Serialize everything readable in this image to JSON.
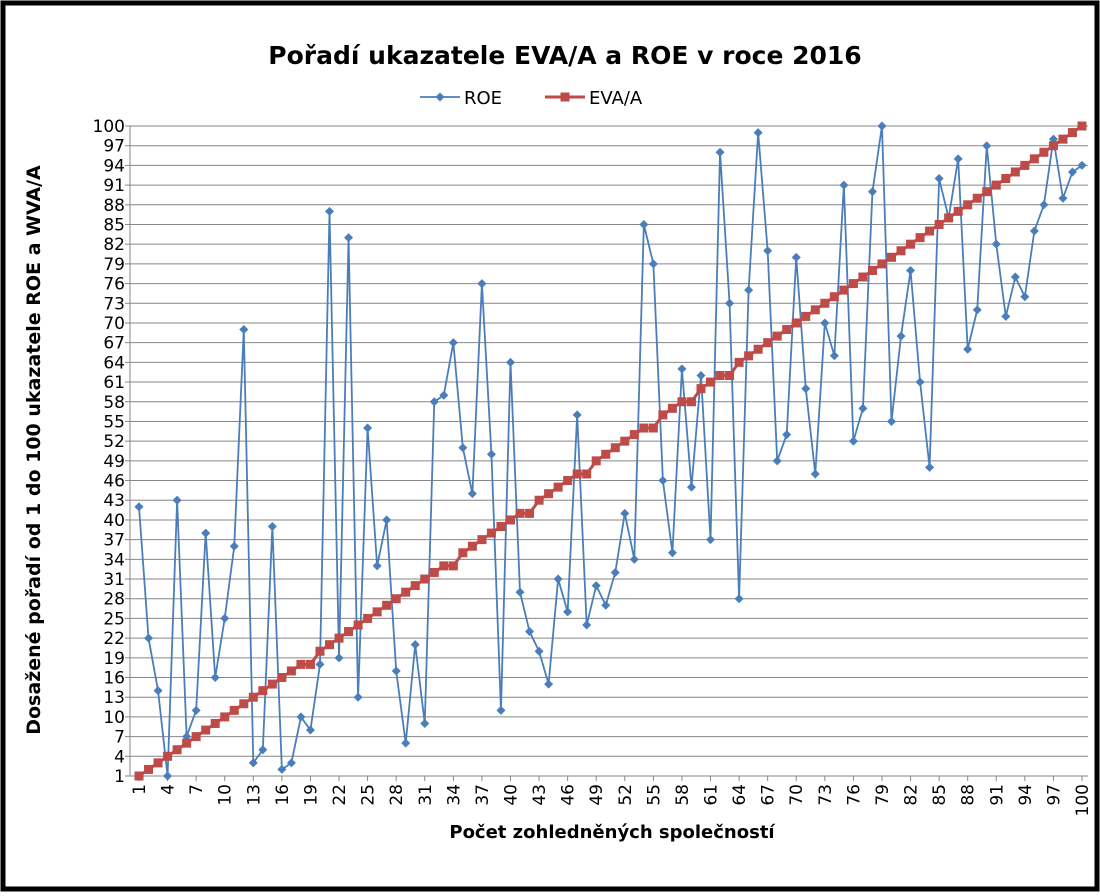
{
  "chart_data": {
    "type": "line",
    "title": "Pořadí ukazatele EVA/A a ROE v roce 2016",
    "x_label": "Počet zohledněných společností",
    "y_label": "Dosažené pořadí od 1 do 100 ukazatele ROE a WVA/A",
    "x": [
      1,
      2,
      3,
      4,
      5,
      6,
      7,
      8,
      9,
      10,
      11,
      12,
      13,
      14,
      15,
      16,
      17,
      18,
      19,
      20,
      21,
      22,
      23,
      24,
      25,
      26,
      27,
      28,
      29,
      30,
      31,
      32,
      33,
      34,
      35,
      36,
      37,
      38,
      39,
      40,
      41,
      42,
      43,
      44,
      45,
      46,
      47,
      48,
      49,
      50,
      51,
      52,
      53,
      54,
      55,
      56,
      57,
      58,
      59,
      60,
      61,
      62,
      63,
      64,
      65,
      66,
      67,
      68,
      69,
      70,
      71,
      72,
      73,
      74,
      75,
      76,
      77,
      78,
      79,
      80,
      81,
      82,
      83,
      84,
      85,
      86,
      87,
      88,
      89,
      90,
      91,
      92,
      93,
      94,
      95,
      96,
      97,
      98,
      99,
      100
    ],
    "xlim": [
      1,
      100
    ],
    "xticks": [
      1,
      4,
      7,
      10,
      13,
      16,
      19,
      22,
      25,
      28,
      31,
      34,
      37,
      40,
      43,
      46,
      49,
      52,
      55,
      58,
      61,
      64,
      67,
      70,
      73,
      76,
      79,
      82,
      85,
      88,
      91,
      94,
      97,
      100
    ],
    "ylim": [
      1,
      100
    ],
    "yticks": [
      1,
      4,
      7,
      10,
      13,
      16,
      19,
      22,
      25,
      28,
      31,
      34,
      37,
      40,
      43,
      46,
      49,
      52,
      55,
      58,
      61,
      64,
      67,
      70,
      73,
      76,
      79,
      82,
      85,
      88,
      91,
      94,
      97,
      100
    ],
    "grid": true,
    "legend": "top",
    "series": [
      {
        "name": "ROE",
        "color": "#4a7ebb",
        "marker": "diamond",
        "values": [
          42,
          22,
          14,
          1,
          43,
          7,
          11,
          38,
          16,
          25,
          36,
          69,
          3,
          5,
          39,
          2,
          3,
          10,
          8,
          18,
          87,
          19,
          83,
          13,
          54,
          33,
          40,
          17,
          6,
          21,
          9,
          58,
          59,
          67,
          51,
          44,
          76,
          50,
          11,
          64,
          29,
          23,
          20,
          15,
          31,
          26,
          56,
          24,
          30,
          27,
          32,
          41,
          34,
          85,
          79,
          46,
          35,
          63,
          45,
          62,
          37,
          96,
          73,
          28,
          75,
          99,
          81,
          49,
          53,
          80,
          60,
          47,
          70,
          65,
          91,
          52,
          57,
          90,
          100,
          55,
          68,
          78,
          61,
          48,
          92,
          86,
          95,
          66,
          72,
          97,
          82,
          71,
          77,
          74,
          84,
          88,
          98,
          89,
          93,
          94
        ]
      },
      {
        "name": "EVA/A",
        "color": "#be4b48",
        "marker": "square",
        "values": [
          1,
          2,
          3,
          4,
          5,
          6,
          7,
          8,
          9,
          10,
          11,
          12,
          13,
          14,
          15,
          16,
          17,
          18,
          18,
          20,
          21,
          22,
          23,
          24,
          25,
          26,
          27,
          28,
          29,
          30,
          31,
          32,
          33,
          33,
          35,
          36,
          37,
          38,
          39,
          40,
          41,
          41,
          43,
          44,
          45,
          46,
          47,
          47,
          49,
          50,
          51,
          52,
          53,
          54,
          54,
          56,
          57,
          58,
          58,
          60,
          61,
          62,
          62,
          64,
          65,
          66,
          67,
          68,
          69,
          70,
          71,
          72,
          73,
          74,
          75,
          76,
          77,
          78,
          79,
          80,
          81,
          82,
          83,
          84,
          85,
          86,
          87,
          88,
          89,
          90,
          91,
          92,
          93,
          94,
          95,
          96,
          97,
          98,
          99,
          100
        ]
      }
    ]
  }
}
